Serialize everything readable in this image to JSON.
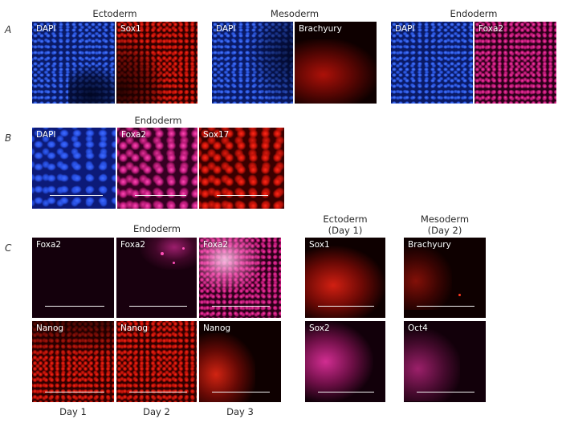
{
  "panel_letters": {
    "a": "A",
    "b": "B",
    "c": "C"
  },
  "row_a": {
    "headings": {
      "ectoderm": "Ectoderm",
      "mesoderm": "Mesoderm",
      "endoderm": "Endoderm"
    },
    "labels": {
      "ecto_dapi": "DAPI",
      "ecto_marker": "Sox1",
      "meso_dapi": "DAPI",
      "meso_marker": "Brachyury",
      "endo_dapi": "DAPI",
      "endo_marker": "Foxa2"
    }
  },
  "row_b": {
    "heading": "Endoderm",
    "labels": {
      "dapi": "DAPI",
      "foxa2": "Foxa2",
      "sox17": "Sox17"
    }
  },
  "row_c": {
    "headings": {
      "endoderm": "Endoderm",
      "ectoderm_line1": "Ectoderm",
      "ectoderm_line2": "(Day 1)",
      "mesoderm_line1": "Mesoderm",
      "mesoderm_line2": "(Day 2)"
    },
    "labels": {
      "foxa2_day1": "Foxa2",
      "foxa2_day2": "Foxa2",
      "foxa2_day3": "Foxa2",
      "nanog_day1": "Nanog",
      "nanog_day2": "Nanog",
      "nanog_day3": "Nanog",
      "sox1": "Sox1",
      "sox2": "Sox2",
      "brachyury": "Brachyury",
      "oct4": "Oct4"
    },
    "days": {
      "day1": "Day 1",
      "day2": "Day 2",
      "day3": "Day 3"
    }
  },
  "channel_colors": {
    "dapi": "#2b57e0",
    "red": "#e01e12",
    "magenta": "#e02f95"
  }
}
